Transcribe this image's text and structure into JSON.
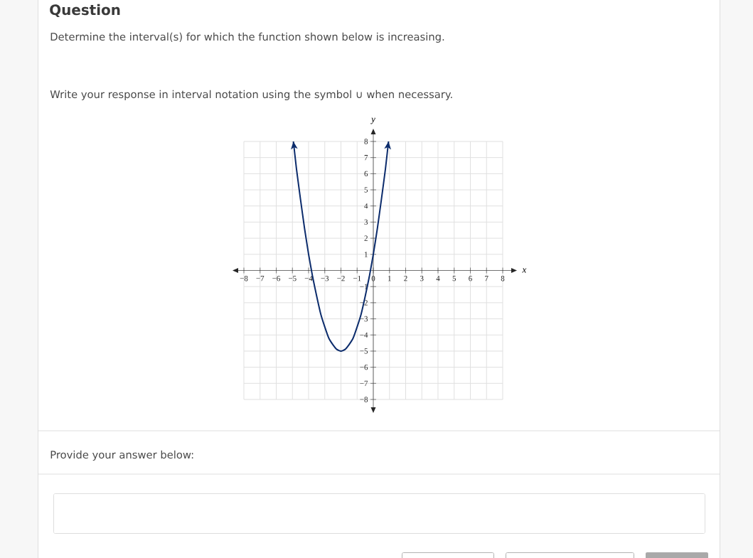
{
  "chart_data": {
    "type": "line",
    "title": "Question",
    "annotations": [
      "Determine the interval(s) for which the function shown below is increasing.",
      "Write your response in interval notation using the symbol ∪ when necessary.",
      "Provide your answer below:"
    ],
    "xlabel": "x",
    "ylabel": "y",
    "x": [
      -4.94,
      -4.75,
      -4.5,
      -4.25,
      -4,
      -3.75,
      -3.5,
      -3.25,
      -3,
      -2.75,
      -2.5,
      -2.25,
      -2,
      -1.75,
      -1.5,
      -1.25,
      -1,
      -0.75,
      -0.5,
      -0.25,
      0,
      0.25,
      0.5,
      0.75,
      0.94
    ],
    "series": [
      {
        "color": "#0c2c6c",
        "values": [
          8.0,
          6.3,
          4.4,
          2.6,
          1.0,
          -0.4,
          -1.6,
          -2.7,
          -3.5,
          -4.2,
          -4.6,
          -4.9,
          -5.0,
          -4.9,
          -4.6,
          -4.2,
          -3.5,
          -2.7,
          -1.6,
          -0.4,
          1.0,
          2.6,
          4.4,
          6.3,
          8.0
        ]
      }
    ],
    "xlim": [
      -8,
      8
    ],
    "ylim": [
      -8,
      8
    ],
    "xticks": [
      {
        "value": -8,
        "label": "−8"
      },
      {
        "value": -7,
        "label": "−7"
      },
      {
        "value": -6,
        "label": "−6"
      },
      {
        "value": -5,
        "label": "−5"
      },
      {
        "value": -4,
        "label": "−4"
      },
      {
        "value": -3,
        "label": "−3"
      },
      {
        "value": -2,
        "label": "−2"
      },
      {
        "value": -1,
        "label": "−1"
      },
      0,
      1,
      2,
      3,
      4,
      5,
      6,
      7,
      8
    ],
    "yticks": [
      {
        "value": -8,
        "label": "−8"
      },
      {
        "value": -7,
        "label": "−7"
      },
      {
        "value": -6,
        "label": "−6"
      },
      {
        "value": -5,
        "label": "−5"
      },
      {
        "value": -4,
        "label": "−4"
      },
      {
        "value": -3,
        "label": "−3"
      },
      {
        "value": -2,
        "label": "−2"
      },
      {
        "value": -1,
        "label": "−1"
      },
      1,
      2,
      3,
      4,
      5,
      6,
      7,
      8
    ],
    "grid": true,
    "marker": "none",
    "line_style": "solid"
  }
}
